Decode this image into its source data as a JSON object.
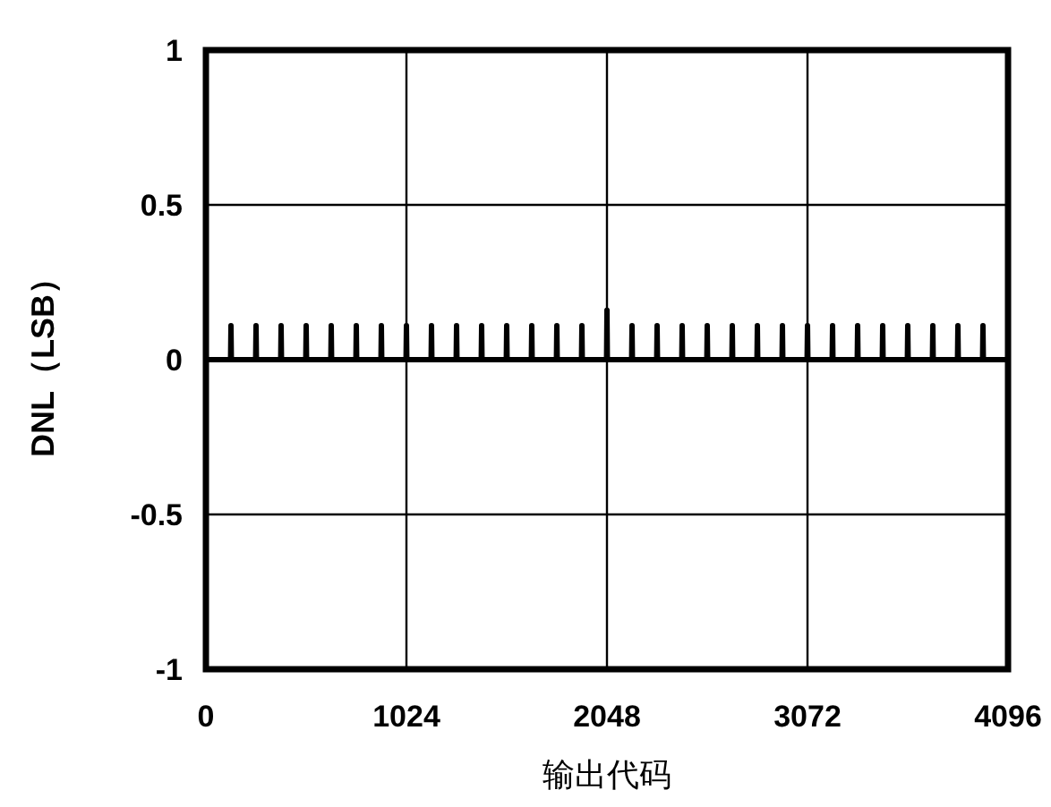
{
  "chart_data": {
    "type": "line",
    "xlabel": "输出代码",
    "ylabel": "DNL（LSB）",
    "xlim": [
      0,
      4096
    ],
    "xticks": [
      0,
      1024,
      2048,
      3072,
      4096
    ],
    "ylim": [
      -1,
      1
    ],
    "yticks": [
      -1,
      -0.5,
      0,
      0.5,
      1
    ],
    "grid": true,
    "marker": "none",
    "line_style": "solid",
    "series": [
      {
        "color": "#000000",
        "x": [
          0,
          126,
          128,
          130,
          254,
          256,
          258,
          382,
          384,
          386,
          510,
          512,
          514,
          638,
          640,
          642,
          766,
          768,
          770,
          894,
          896,
          898,
          1022,
          1024,
          1026,
          1150,
          1152,
          1154,
          1278,
          1280,
          1282,
          1406,
          1408,
          1410,
          1534,
          1536,
          1538,
          1662,
          1664,
          1666,
          1790,
          1792,
          1794,
          1918,
          1920,
          1922,
          2046,
          2048,
          2050,
          2174,
          2176,
          2178,
          2302,
          2304,
          2306,
          2430,
          2432,
          2434,
          2558,
          2560,
          2562,
          2686,
          2688,
          2690,
          2814,
          2816,
          2818,
          2942,
          2944,
          2946,
          3070,
          3072,
          3074,
          3198,
          3200,
          3202,
          3326,
          3328,
          3330,
          3454,
          3456,
          3458,
          3582,
          3584,
          3586,
          3710,
          3712,
          3714,
          3838,
          3840,
          3842,
          3966,
          3968,
          3970,
          4096
        ],
        "values": [
          0,
          0,
          0.11,
          0,
          0,
          0.11,
          0,
          0,
          0.11,
          0,
          0,
          0.11,
          0,
          0,
          0.11,
          0,
          0,
          0.11,
          0,
          0,
          0.11,
          0,
          0,
          0.11,
          0,
          0,
          0.11,
          0,
          0,
          0.11,
          0,
          0,
          0.11,
          0,
          0,
          0.11,
          0,
          0,
          0.11,
          0,
          0,
          0.11,
          0,
          0,
          0.11,
          0,
          0,
          0.16,
          0,
          0,
          0.11,
          0,
          0,
          0.11,
          0,
          0,
          0.11,
          0,
          0,
          0.11,
          0,
          0,
          0.11,
          0,
          0,
          0.11,
          0,
          0,
          0.11,
          0,
          0,
          0.11,
          0,
          0,
          0.11,
          0,
          0,
          0.11,
          0,
          0,
          0.11,
          0,
          0,
          0.11,
          0,
          0,
          0.11,
          0,
          0,
          0.11,
          0,
          0,
          0.11,
          0,
          0
        ]
      }
    ]
  }
}
